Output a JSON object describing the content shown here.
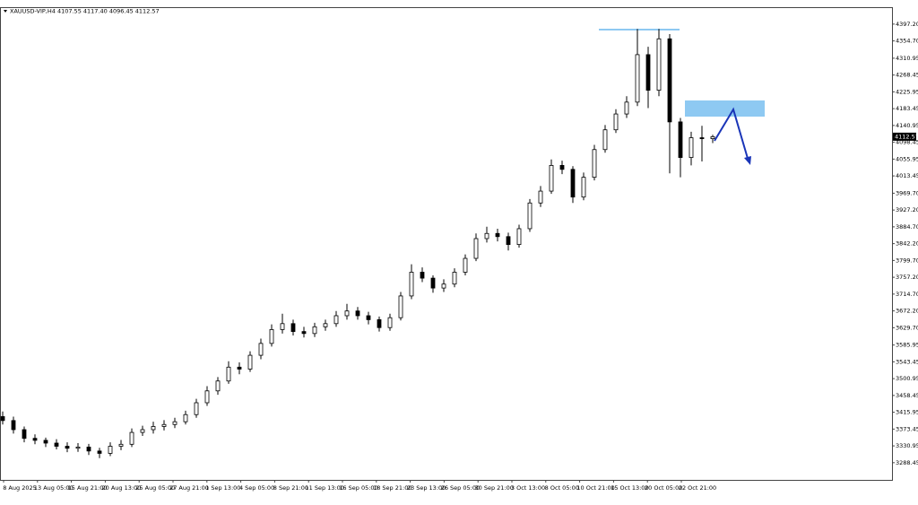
{
  "chart_data": {
    "type": "candlestick",
    "title": "XAUUSD-VIP,H4  4107.55 4117.40 4096.45 4112.57",
    "ylim": [
      3245,
      4440
    ],
    "yticks": [
      {
        "value": 4397.2,
        "label": "4397.20"
      },
      {
        "value": 4354.7,
        "label": "4354.70"
      },
      4310.95,
      4268.45,
      4225.95,
      4183.45,
      4140.95,
      4098.45,
      4055.95,
      4013.45,
      {
        "value": 3969.7,
        "label": "3969.70"
      },
      {
        "value": 3927.2,
        "label": "3927.20"
      },
      {
        "value": 3884.7,
        "label": "3884.70"
      },
      {
        "value": 3842.2,
        "label": "3842.20"
      },
      {
        "value": 3799.7,
        "label": "3799.70"
      },
      {
        "value": 3757.2,
        "label": "3757.20"
      },
      {
        "value": 3714.7,
        "label": "3714.70"
      },
      {
        "value": 3672.2,
        "label": "3672.20"
      },
      {
        "value": 3629.7,
        "label": "3629.70"
      },
      3585.95,
      3543.45,
      3500.95,
      3458.45,
      3415.95,
      3373.45,
      3330.95,
      3288.45
    ],
    "x_labels": [
      "8 Aug 2025",
      "13 Aug 05:00",
      "15 Aug 21:00",
      "20 Aug 13:00",
      "25 Aug 05:00",
      "27 Aug 21:00",
      "1 Sep 13:00",
      "4 Sep 05:00",
      "8 Sep 21:00",
      "11 Sep 13:00",
      "16 Sep 05:00",
      "18 Sep 21:00",
      "23 Sep 13:00",
      "26 Sep 05:00",
      "30 Sep 21:00",
      "3 Oct 13:00",
      "8 Oct 05:00",
      "10 Oct 21:00",
      "15 Oct 13:00",
      "20 Oct 05:00",
      "22 Oct 21:00"
    ],
    "open": [
      3405,
      3395,
      3372,
      3350,
      3345,
      3338,
      3330,
      3325,
      3328,
      3318,
      3312,
      3330,
      3335,
      3365,
      3372,
      3380,
      3385,
      3392,
      3410,
      3440,
      3470,
      3495,
      3530,
      3525,
      3560,
      3590,
      3625,
      3640,
      3620,
      3615,
      3632,
      3640,
      3660,
      3672,
      3660,
      3650,
      3630,
      3655,
      3710,
      3770,
      3755,
      3730,
      3740,
      3770,
      3805,
      3855,
      3868,
      3860,
      3840,
      3880,
      3945,
      3975,
      4040,
      4030,
      3960,
      4010,
      4080,
      4130,
      4170,
      4200,
      4320,
      4230,
      4360,
      4150,
      4060,
      4110,
      4107.55
    ],
    "high": [
      3418,
      3405,
      3380,
      3360,
      3352,
      3348,
      3340,
      3338,
      3336,
      3326,
      3340,
      3346,
      3375,
      3382,
      3392,
      3396,
      3402,
      3420,
      3450,
      3482,
      3505,
      3545,
      3542,
      3570,
      3602,
      3638,
      3665,
      3650,
      3632,
      3642,
      3650,
      3672,
      3690,
      3682,
      3670,
      3658,
      3665,
      3720,
      3790,
      3782,
      3762,
      3752,
      3780,
      3815,
      3868,
      3885,
      3880,
      3870,
      3890,
      3955,
      3988,
      4055,
      4052,
      4038,
      4022,
      4092,
      4142,
      4182,
      4215,
      4385,
      4340,
      4385,
      4372,
      4160,
      4125,
      4140,
      4117.4
    ],
    "low": [
      3385,
      3362,
      3340,
      3335,
      3328,
      3322,
      3315,
      3316,
      3308,
      3300,
      3305,
      3320,
      3328,
      3356,
      3362,
      3370,
      3376,
      3385,
      3402,
      3432,
      3460,
      3488,
      3512,
      3518,
      3550,
      3582,
      3615,
      3610,
      3605,
      3606,
      3622,
      3632,
      3650,
      3650,
      3638,
      3620,
      3622,
      3648,
      3702,
      3745,
      3718,
      3720,
      3732,
      3762,
      3798,
      3845,
      3848,
      3825,
      3832,
      3872,
      3935,
      3968,
      4018,
      3945,
      3952,
      4002,
      4072,
      4122,
      4160,
      4190,
      4185,
      4215,
      4020,
      4010,
      4040,
      4050,
      4096.45
    ],
    "close": [
      3395,
      3372,
      3350,
      3345,
      3338,
      3330,
      3325,
      3328,
      3318,
      3312,
      3330,
      3335,
      3365,
      3372,
      3380,
      3385,
      3392,
      3410,
      3440,
      3470,
      3495,
      3530,
      3525,
      3560,
      3590,
      3625,
      3640,
      3620,
      3615,
      3632,
      3640,
      3660,
      3672,
      3660,
      3650,
      3630,
      3655,
      3710,
      3770,
      3755,
      3730,
      3740,
      3770,
      3805,
      3855,
      3868,
      3860,
      3840,
      3880,
      3945,
      3975,
      4040,
      4030,
      3960,
      4010,
      4080,
      4130,
      4170,
      4200,
      4320,
      4230,
      4360,
      4150,
      4060,
      4110,
      4107.55,
      4112.57
    ]
  }
}
